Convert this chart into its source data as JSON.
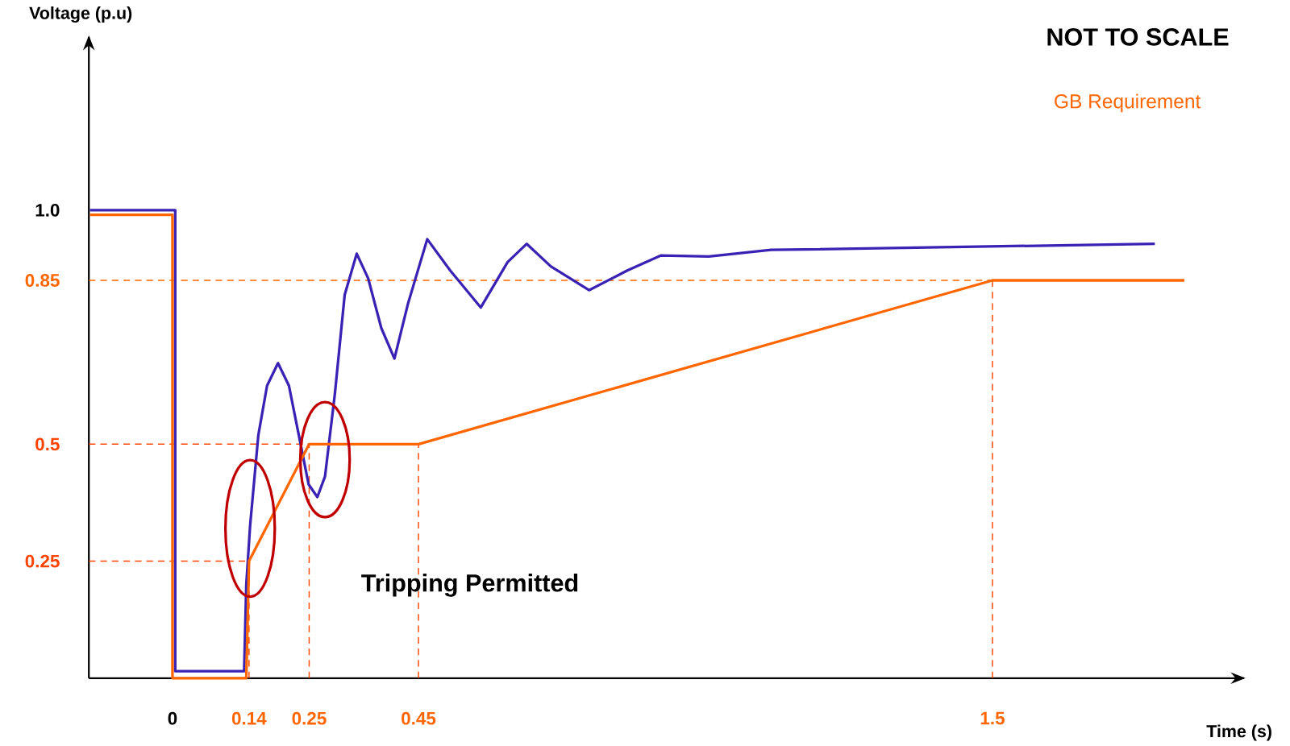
{
  "chart_data": {
    "type": "line",
    "xlabel": "Time (s)",
    "ylabel": "Voltage (p.u)",
    "annotations": [
      "NOT TO SCALE",
      "Tripping Permitted"
    ],
    "xlim": [
      -0.153,
      1.96
    ],
    "ylim": [
      0,
      1.37
    ],
    "xticks": [
      {
        "value": 0,
        "label": "0"
      },
      {
        "value": 0.14,
        "label": "0.14"
      },
      {
        "value": 0.25,
        "label": "0.25"
      },
      {
        "value": 0.45,
        "label": "0.45"
      },
      {
        "value": 1.5,
        "label": "1.5"
      }
    ],
    "yticks": [
      {
        "value": 0.25,
        "label": "0.25"
      },
      {
        "value": 0.5,
        "label": "0.5"
      },
      {
        "value": 0.85,
        "label": "0.85"
      },
      {
        "value": 1,
        "label": "1.0"
      }
    ],
    "legend": "top right",
    "series": [
      {
        "color": "#3a22b4",
        "x": [
          -0.151,
          0.005,
          0.005,
          0.131,
          0.135,
          0.142,
          0.157,
          0.173,
          0.193,
          0.213,
          0.234,
          0.249,
          0.265,
          0.279,
          0.297,
          0.315,
          0.337,
          0.358,
          0.382,
          0.406,
          0.431,
          0.466,
          0.508,
          0.564,
          0.613,
          0.648,
          0.692,
          0.762,
          0.832,
          0.893,
          0.981,
          1.095,
          1.797
        ],
        "values": [
          1.0,
          1.0,
          0.015,
          0.015,
          0.2,
          0.326,
          0.519,
          0.625,
          0.673,
          0.625,
          0.502,
          0.414,
          0.387,
          0.431,
          0.607,
          0.819,
          0.907,
          0.854,
          0.748,
          0.683,
          0.801,
          0.938,
          0.871,
          0.792,
          0.889,
          0.928,
          0.88,
          0.829,
          0.871,
          0.903,
          0.901,
          0.915,
          0.928
        ]
      },
      {
        "name": "GB Requirement",
        "color": "#ff6600",
        "x": [
          -0.151,
          0,
          0,
          0.135,
          0.14,
          0.25,
          0.45,
          1.5,
          1.851
        ],
        "values": [
          0.99,
          0.99,
          0,
          0,
          0.25,
          0.5,
          0.5,
          0.85,
          0.85
        ]
      }
    ],
    "ref_lines": [
      {
        "axis": "y",
        "value": 0.85,
        "color": "#ff6600",
        "line_style": "dashed"
      },
      {
        "axis": "y",
        "value": 0.5,
        "color": "#ff4400",
        "line_style": "dashed"
      },
      {
        "axis": "y",
        "value": 0.25,
        "color": "#ff4400",
        "line_style": "dashed"
      },
      {
        "axis": "x",
        "value": 0.14,
        "color": "#ff4400",
        "line_style": "dashed"
      },
      {
        "axis": "x",
        "value": 0.25,
        "color": "#ff4400",
        "line_style": "dashed"
      },
      {
        "axis": "x",
        "value": 0.45,
        "color": "#ff4400",
        "line_style": "dashed"
      },
      {
        "axis": "x",
        "value": 1.5,
        "color": "#ff4400",
        "line_style": "dashed"
      }
    ]
  }
}
